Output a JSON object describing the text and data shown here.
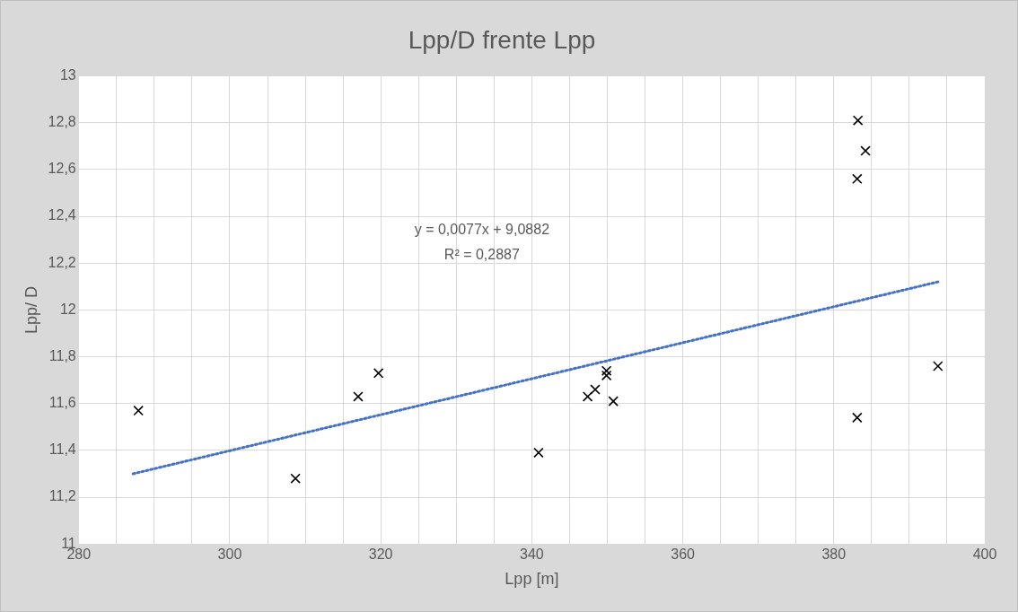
{
  "chart_data": {
    "type": "scatter",
    "title": "Lpp/D frente Lpp",
    "xlabel": "Lpp [m]",
    "ylabel": "Lpp/ D",
    "x": [
      287.9,
      308.7,
      317.0,
      319.7,
      340.9,
      347.4,
      348.4,
      349.9,
      349.9,
      350.8,
      383.2,
      384.2,
      383.1,
      383.1,
      393.8
    ],
    "series": [
      {
        "color": "#000000",
        "marker": "cross",
        "values": [
          11.57,
          11.28,
          11.63,
          11.73,
          11.39,
          11.63,
          11.66,
          11.74,
          11.72,
          11.61,
          12.81,
          12.68,
          12.56,
          11.54,
          11.76
        ]
      },
      {
        "type": "line",
        "color": "#4472c4",
        "line_style": "dotted",
        "marker": "none",
        "x": [
          287.2,
          393.8
        ],
        "values": [
          11.3,
          12.12
        ]
      }
    ],
    "xlim": [
      280,
      400
    ],
    "xticks": [
      280,
      {
        "value": 285,
        "label": null
      },
      {
        "value": 290,
        "label": null
      },
      {
        "value": 295,
        "label": null
      },
      300,
      {
        "value": 305,
        "label": null
      },
      {
        "value": 310,
        "label": null
      },
      {
        "value": 315,
        "label": null
      },
      320,
      {
        "value": 325,
        "label": null
      },
      {
        "value": 330,
        "label": null
      },
      {
        "value": 335,
        "label": null
      },
      340,
      {
        "value": 345,
        "label": null
      },
      {
        "value": 350,
        "label": null
      },
      {
        "value": 355,
        "label": null
      },
      360,
      {
        "value": 365,
        "label": null
      },
      {
        "value": 370,
        "label": null
      },
      {
        "value": 375,
        "label": null
      },
      380,
      {
        "value": 385,
        "label": null
      },
      {
        "value": 390,
        "label": null
      },
      {
        "value": 395,
        "label": null
      },
      400
    ],
    "ylim": [
      11,
      13
    ],
    "yticks": [
      11,
      {
        "value": 11.2,
        "label": "11,2"
      },
      {
        "value": 11.4,
        "label": "11,4"
      },
      {
        "value": 11.6,
        "label": "11,6"
      },
      {
        "value": 11.8,
        "label": "11,8"
      },
      12,
      {
        "value": 12.2,
        "label": "12,2"
      },
      {
        "value": 12.4,
        "label": "12,4"
      },
      {
        "value": 12.6,
        "label": "12,6"
      },
      {
        "value": 12.8,
        "label": "12,8"
      },
      13
    ],
    "grid": true,
    "legend": false,
    "annotations": [
      "y = 0,0077x + 9,0882",
      "R² = 0,2887"
    ]
  }
}
